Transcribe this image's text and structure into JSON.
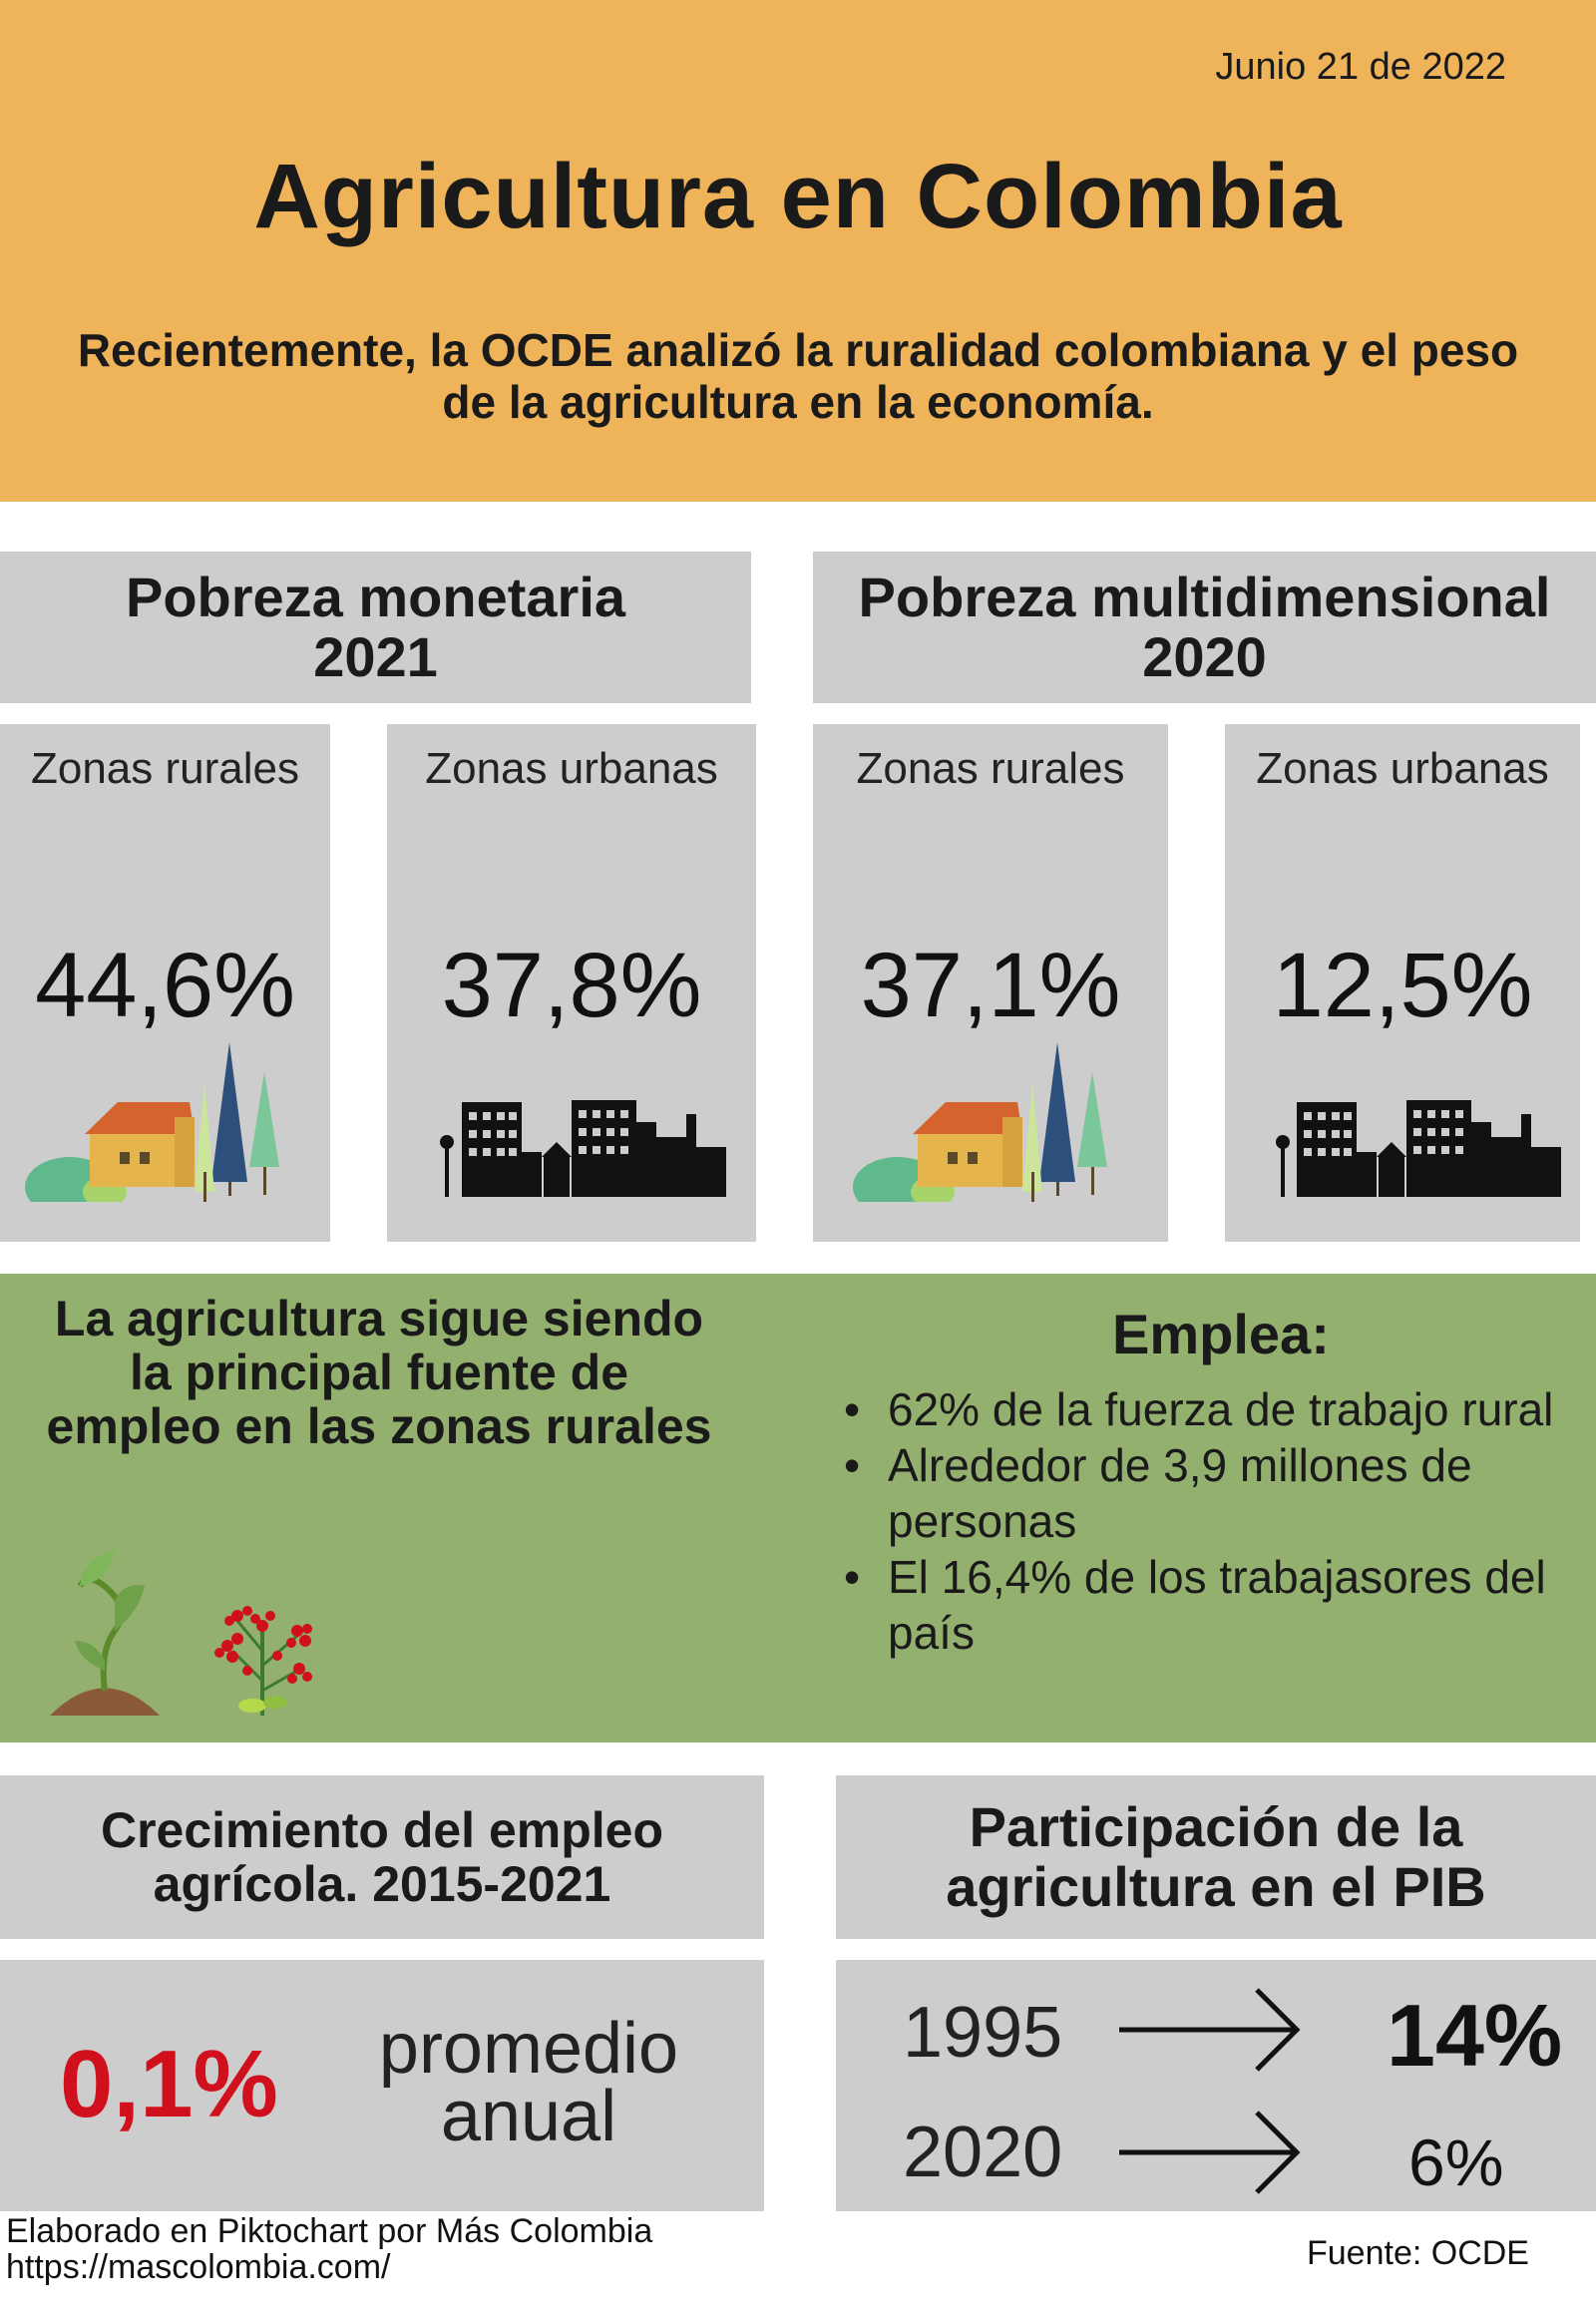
{
  "header": {
    "date": "Junio 21 de 2022",
    "title": "Agricultura en Colombia",
    "subtitle": "Recientemente, la OCDE analizó la ruralidad colombiana y el peso de la agricultura en la economía."
  },
  "poverty": {
    "monetary": {
      "title_line1": "Pobreza monetaria",
      "title_line2": "2021",
      "rural_label": "Zonas rurales",
      "rural_value": "44,6%",
      "urban_label": "Zonas urbanas",
      "urban_value": "37,8%"
    },
    "multidimensional": {
      "title_line1": "Pobreza multidimensional",
      "title_line2": "2020",
      "rural_label": "Zonas rurales",
      "rural_value": "37,1%",
      "urban_label": "Zonas urbanas",
      "urban_value": "12,5%"
    }
  },
  "employment": {
    "statement": "La agricultura sigue siendo la principal fuente de empleo en las zonas rurales",
    "emplea_title": "Emplea:",
    "items": [
      "62% de la fuerza de trabajo rural",
      "Alrededor de 3,9 millones de personas",
      "El 16,4% de los trabajasores del país"
    ]
  },
  "growth": {
    "title": "Crecimiento del empleo agrícola. 2015-2021",
    "value": "0,1%",
    "label_line1": "promedio",
    "label_line2": "anual"
  },
  "gdp": {
    "title": "Participación de la agricultura en el PIB",
    "rows": [
      {
        "year": "1995",
        "value": "14%"
      },
      {
        "year": "2020",
        "value": "6%"
      }
    ]
  },
  "footer": {
    "credit_line1": "Elaborado en Piktochart por Más Colombia",
    "credit_line2": "https://mascolombia.com/",
    "source": "Fuente: OCDE"
  },
  "colors": {
    "header_bg": "#efb45a",
    "panel_grey": "#cdcdcd",
    "green_bg": "#94b06f",
    "accent_red": "#d0101d"
  }
}
